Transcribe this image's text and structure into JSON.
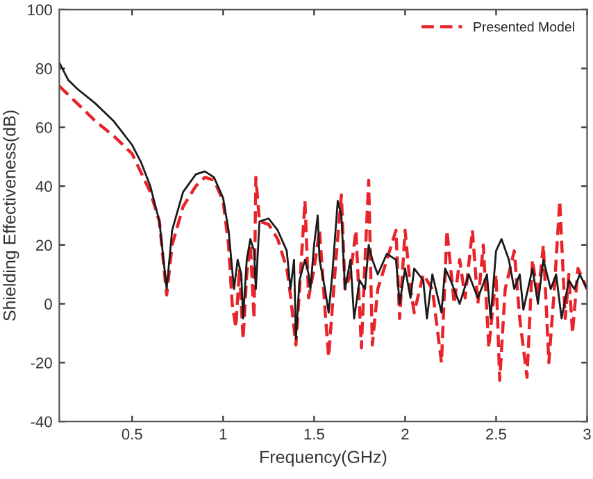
{
  "chart_data": {
    "type": "line",
    "xlabel": "Frequency(GHz)",
    "ylabel": "Shielding Effectiveness(dB)",
    "xlim": [
      0.1,
      3
    ],
    "ylim": [
      -40,
      100
    ],
    "xticks": [
      0.5,
      1,
      1.5,
      2,
      2.5,
      3
    ],
    "yticks": [
      -40,
      -20,
      0,
      20,
      40,
      60,
      80,
      100
    ],
    "grid": false,
    "legend": "top right",
    "series": [
      {
        "name": "Presented Model",
        "color": "#e8232a",
        "line_style": "dashed",
        "x": [
          0.1,
          0.2,
          0.3,
          0.4,
          0.5,
          0.6,
          0.65,
          0.69,
          0.72,
          0.78,
          0.85,
          0.9,
          0.95,
          1.0,
          1.03,
          1.05,
          1.07,
          1.09,
          1.11,
          1.13,
          1.15,
          1.17,
          1.18,
          1.2,
          1.25,
          1.3,
          1.35,
          1.37,
          1.4,
          1.42,
          1.45,
          1.47,
          1.5,
          1.53,
          1.56,
          1.58,
          1.62,
          1.65,
          1.67,
          1.7,
          1.73,
          1.76,
          1.78,
          1.8,
          1.82,
          1.85,
          1.9,
          1.95,
          1.97,
          2.0,
          2.03,
          2.05,
          2.1,
          2.15,
          2.2,
          2.23,
          2.27,
          2.3,
          2.33,
          2.37,
          2.4,
          2.43,
          2.46,
          2.5,
          2.52,
          2.55,
          2.6,
          2.63,
          2.67,
          2.7,
          2.73,
          2.76,
          2.79,
          2.82,
          2.85,
          2.88,
          2.9,
          2.92,
          2.95,
          3.0
        ],
        "values": [
          74,
          68,
          62,
          57,
          51,
          38,
          28,
          3,
          20,
          33,
          40,
          43,
          42,
          35,
          20,
          0,
          -8,
          12,
          -12,
          10,
          20,
          -5,
          43,
          28,
          27,
          22,
          12,
          3,
          -14,
          5,
          35,
          2,
          12,
          25,
          -2,
          -18,
          15,
          37,
          5,
          10,
          25,
          -15,
          15,
          42,
          -14,
          5,
          15,
          25,
          -5,
          25,
          5,
          -3,
          10,
          5,
          -20,
          25,
          0,
          15,
          2,
          25,
          0,
          20,
          -15,
          10,
          -26,
          5,
          18,
          -5,
          -25,
          15,
          2,
          20,
          -20,
          5,
          35,
          -5,
          10,
          -10,
          12,
          5
        ]
      },
      {
        "color": "#1a1a1a",
        "line_style": "solid",
        "x": [
          0.1,
          0.15,
          0.2,
          0.3,
          0.4,
          0.5,
          0.55,
          0.6,
          0.65,
          0.69,
          0.72,
          0.78,
          0.85,
          0.9,
          0.95,
          1.0,
          1.03,
          1.06,
          1.08,
          1.1,
          1.11,
          1.13,
          1.15,
          1.17,
          1.18,
          1.2,
          1.25,
          1.3,
          1.35,
          1.37,
          1.39,
          1.4,
          1.42,
          1.45,
          1.47,
          1.48,
          1.5,
          1.52,
          1.53,
          1.56,
          1.58,
          1.6,
          1.63,
          1.65,
          1.67,
          1.7,
          1.72,
          1.75,
          1.78,
          1.8,
          1.82,
          1.85,
          1.9,
          1.95,
          1.97,
          2.0,
          2.03,
          2.05,
          2.1,
          2.12,
          2.15,
          2.2,
          2.22,
          2.25,
          2.3,
          2.35,
          2.4,
          2.45,
          2.47,
          2.5,
          2.53,
          2.57,
          2.6,
          2.63,
          2.65,
          2.7,
          2.73,
          2.76,
          2.8,
          2.83,
          2.86,
          2.9,
          2.93,
          2.96,
          3.0
        ],
        "values": [
          82,
          76,
          73,
          68,
          62,
          54,
          48,
          40,
          28,
          5,
          25,
          38,
          44,
          45,
          43,
          36,
          25,
          5,
          15,
          10,
          -5,
          15,
          22,
          18,
          5,
          28,
          29,
          25,
          18,
          5,
          15,
          -12,
          8,
          15,
          10,
          5,
          20,
          30,
          15,
          5,
          -3,
          10,
          35,
          30,
          5,
          15,
          -5,
          8,
          5,
          20,
          15,
          10,
          17,
          15,
          0,
          12,
          2,
          12,
          8,
          -5,
          10,
          -3,
          12,
          8,
          0,
          10,
          2,
          10,
          -5,
          18,
          22,
          15,
          5,
          10,
          -2,
          12,
          0,
          15,
          5,
          10,
          -5,
          8,
          5,
          10,
          5
        ]
      }
    ]
  }
}
